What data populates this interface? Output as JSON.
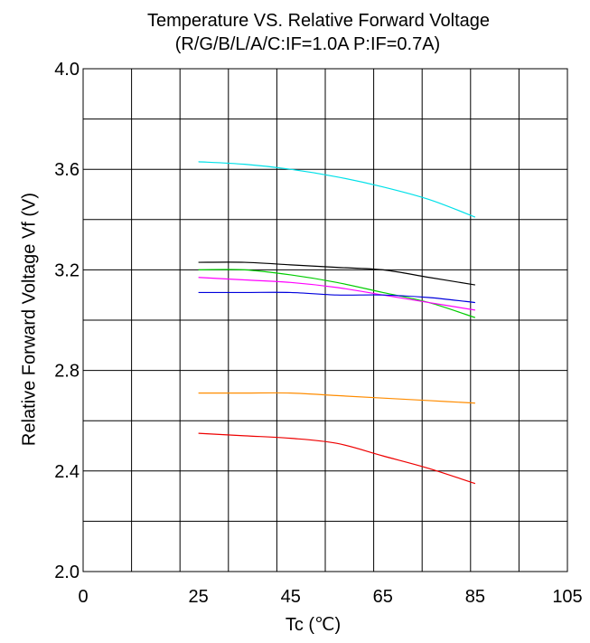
{
  "chart_data": {
    "type": "line",
    "title": "Temperature VS.  Relative Forward  Voltage",
    "subtitle": "(R/G/B/L/A/C:IF=1.0A  P:IF=0.7A)",
    "xlabel": "Tc (℃)",
    "ylabel": "Relative Forward  Voltage  Vf  (V)",
    "xlim": [
      0,
      105
    ],
    "ylim": [
      2.0,
      4.0
    ],
    "xticks": [
      "0",
      "25",
      "45",
      "65",
      "85",
      "105"
    ],
    "xtick_values": [
      0,
      25,
      45,
      65,
      85,
      105
    ],
    "yticks": [
      "2.0",
      "2.4",
      "2.8",
      "3.2",
      "3.6",
      "4.0"
    ],
    "ytick_values": [
      2.0,
      2.4,
      2.8,
      3.2,
      3.6,
      4.0
    ],
    "grid": true,
    "series": [
      {
        "color": "#00e0e8",
        "x": [
          25,
          35,
          45,
          55,
          65,
          75,
          85
        ],
        "y": [
          3.63,
          3.62,
          3.6,
          3.57,
          3.53,
          3.48,
          3.41
        ]
      },
      {
        "color": "#000000",
        "x": [
          25,
          35,
          45,
          55,
          65,
          75,
          85
        ],
        "y": [
          3.23,
          3.23,
          3.22,
          3.21,
          3.2,
          3.17,
          3.14
        ]
      },
      {
        "color": "#00cc00",
        "x": [
          25,
          35,
          45,
          55,
          65,
          75,
          85
        ],
        "y": [
          3.2,
          3.2,
          3.18,
          3.15,
          3.11,
          3.07,
          3.01
        ]
      },
      {
        "color": "#ff00ff",
        "x": [
          25,
          35,
          45,
          55,
          65,
          75,
          85
        ],
        "y": [
          3.17,
          3.16,
          3.15,
          3.13,
          3.1,
          3.07,
          3.04
        ]
      },
      {
        "color": "#0000dd",
        "x": [
          25,
          35,
          45,
          55,
          65,
          75,
          85
        ],
        "y": [
          3.11,
          3.11,
          3.11,
          3.1,
          3.1,
          3.09,
          3.07
        ]
      },
      {
        "color": "#ff8c00",
        "x": [
          25,
          35,
          45,
          55,
          65,
          75,
          85
        ],
        "y": [
          2.71,
          2.71,
          2.71,
          2.7,
          2.69,
          2.68,
          2.67
        ]
      },
      {
        "color": "#ee0000",
        "x": [
          25,
          35,
          45,
          55,
          65,
          75,
          85
        ],
        "y": [
          2.55,
          2.54,
          2.53,
          2.51,
          2.46,
          2.41,
          2.35
        ]
      }
    ]
  }
}
